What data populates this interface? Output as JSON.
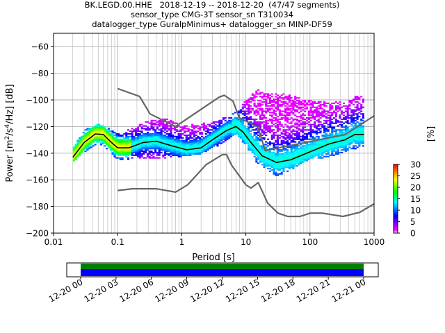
{
  "title_lines": [
    "BK.LEGD.00.HHE   2018-12-19 -- 2018-12-20  (47/47 segments)",
    "sensor_type CMG-3T sensor_sn T310034",
    "datalogger_type GuralpMinimus+ datalogger_sn MINP-DF59"
  ],
  "chart_data": {
    "type": "heatmap",
    "xlabel": "Period [s]",
    "ylabel_parts": {
      "pre": "Power [m",
      "sup1": "2",
      "mid": "/s",
      "sup2": "4",
      "post": "/Hz] [dB]"
    },
    "x_scale": "log",
    "xlim": [
      0.01,
      1000
    ],
    "ylim": [
      -200,
      -50
    ],
    "x_ticks": [
      {
        "value": 0.01,
        "label": "0.01"
      },
      {
        "value": 0.1,
        "label": "0.1"
      },
      {
        "value": 1,
        "label": "1"
      },
      {
        "value": 10,
        "label": "10"
      },
      {
        "value": 100,
        "label": "100"
      },
      {
        "value": 1000,
        "label": "1000"
      }
    ],
    "y_ticks": [
      {
        "value": -60,
        "label": "−60"
      },
      {
        "value": -80,
        "label": "−80"
      },
      {
        "value": -100,
        "label": "−100"
      },
      {
        "value": -120,
        "label": "−120"
      },
      {
        "value": -140,
        "label": "−140"
      },
      {
        "value": -160,
        "label": "−160"
      },
      {
        "value": -180,
        "label": "−180"
      },
      {
        "value": -200,
        "label": "−200"
      }
    ],
    "grid": true,
    "colorbar": {
      "label": "[%]",
      "min": 0,
      "max": 30,
      "ticks": [
        {
          "value": 0,
          "label": "0"
        },
        {
          "value": 5,
          "label": "5"
        },
        {
          "value": 10,
          "label": "10"
        },
        {
          "value": 15,
          "label": "15"
        },
        {
          "value": 20,
          "label": "20"
        },
        {
          "value": 25,
          "label": "25"
        },
        {
          "value": 30,
          "label": "30"
        }
      ],
      "colors": [
        "#ffffff",
        "#ff00ff",
        "#0000ff",
        "#00ff00",
        "#ffff00",
        "#ff0000"
      ]
    },
    "series": [
      {
        "role": "high_noise_model",
        "color": "#666666",
        "points": [
          [
            0.1,
            -91.5
          ],
          [
            0.22,
            -97.4
          ],
          [
            0.32,
            -110.5
          ],
          [
            0.8,
            -120
          ],
          [
            3.8,
            -98
          ],
          [
            4.6,
            -96.5
          ],
          [
            6.3,
            -101
          ],
          [
            7.9,
            -113.5
          ],
          [
            15.4,
            -120.3
          ],
          [
            20,
            -138
          ],
          [
            354.8,
            -126
          ],
          [
            1000,
            -112
          ]
        ]
      },
      {
        "role": "low_noise_model",
        "color": "#666666",
        "points": [
          [
            0.1,
            -168
          ],
          [
            0.17,
            -166.7
          ],
          [
            0.4,
            -166.7
          ],
          [
            0.8,
            -169.2
          ],
          [
            1.24,
            -163.7
          ],
          [
            2.4,
            -148.6
          ],
          [
            4.3,
            -141.1
          ],
          [
            5,
            -141.1
          ],
          [
            6,
            -149
          ],
          [
            10,
            -163.8
          ],
          [
            12,
            -166.2
          ],
          [
            15.6,
            -162.1
          ],
          [
            21.9,
            -177.5
          ],
          [
            31.6,
            -185
          ],
          [
            45,
            -187.5
          ],
          [
            70,
            -187.5
          ],
          [
            101,
            -185
          ],
          [
            154,
            -185
          ],
          [
            328,
            -187.5
          ],
          [
            600,
            -184.4
          ],
          [
            1000,
            -178
          ]
        ]
      },
      {
        "role": "mode",
        "color": "#000000",
        "points": [
          [
            0.02,
            -143
          ],
          [
            0.03,
            -132
          ],
          [
            0.045,
            -125.5
          ],
          [
            0.06,
            -126
          ],
          [
            0.08,
            -132
          ],
          [
            0.1,
            -136
          ],
          [
            0.15,
            -136
          ],
          [
            0.25,
            -132
          ],
          [
            0.4,
            -131
          ],
          [
            0.7,
            -134.5
          ],
          [
            1.2,
            -137.5
          ],
          [
            2,
            -136
          ],
          [
            3,
            -130
          ],
          [
            5,
            -123
          ],
          [
            7,
            -120
          ],
          [
            9,
            -124
          ],
          [
            12,
            -132
          ],
          [
            18,
            -142
          ],
          [
            30,
            -147
          ],
          [
            50,
            -145
          ],
          [
            100,
            -139
          ],
          [
            200,
            -133
          ],
          [
            350,
            -130
          ],
          [
            500,
            -126
          ],
          [
            700,
            -126
          ]
        ]
      }
    ],
    "density": {
      "period_range": [
        0.02,
        700
      ],
      "upper_db": [
        [
          0.02,
          -136
        ],
        [
          0.03,
          -123
        ],
        [
          0.05,
          -118
        ],
        [
          0.08,
          -123
        ],
        [
          0.1,
          -126
        ],
        [
          0.3,
          -116
        ],
        [
          0.6,
          -114
        ],
        [
          1,
          -120
        ],
        [
          3,
          -117
        ],
        [
          5,
          -113
        ],
        [
          8,
          -108
        ],
        [
          10,
          -100
        ],
        [
          15,
          -92
        ],
        [
          20,
          -96
        ],
        [
          40,
          -95
        ],
        [
          80,
          -100
        ],
        [
          150,
          -102
        ],
        [
          300,
          -102
        ],
        [
          500,
          -98
        ],
        [
          700,
          -97
        ]
      ],
      "lower_db": [
        [
          0.02,
          -147
        ],
        [
          0.03,
          -140
        ],
        [
          0.05,
          -133
        ],
        [
          0.08,
          -140
        ],
        [
          0.1,
          -146
        ],
        [
          0.3,
          -144
        ],
        [
          0.6,
          -144
        ],
        [
          1,
          -143
        ],
        [
          2,
          -141
        ],
        [
          4,
          -134
        ],
        [
          7,
          -126
        ],
        [
          10,
          -135
        ],
        [
          15,
          -148
        ],
        [
          30,
          -158
        ],
        [
          50,
          -153
        ],
        [
          100,
          -146
        ],
        [
          200,
          -143
        ],
        [
          400,
          -139
        ],
        [
          700,
          -135
        ]
      ]
    },
    "inset_timeline": {
      "tick_labels": [
        "12-20 00",
        "12-20 03",
        "12-20 06",
        "12-20 09",
        "12-20 12",
        "12-20 15",
        "12-20 18",
        "12-20 21",
        "12-21 00"
      ],
      "bars": [
        {
          "color": "#008000"
        },
        {
          "color": "#0000ff"
        }
      ]
    }
  }
}
